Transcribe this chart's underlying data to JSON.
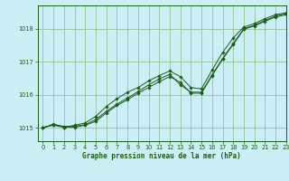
{
  "title": "Graphe pression niveau de la mer (hPa)",
  "bg_color": "#cceef5",
  "grid_color": "#88bb88",
  "line_color": "#1a5c1a",
  "marker_color": "#1a5c1a",
  "xlim": [
    -0.5,
    23
  ],
  "ylim": [
    1014.6,
    1018.7
  ],
  "yticks": [
    1015,
    1016,
    1017,
    1018
  ],
  "xticks": [
    0,
    1,
    2,
    3,
    4,
    5,
    6,
    7,
    8,
    9,
    10,
    11,
    12,
    13,
    14,
    15,
    16,
    17,
    18,
    19,
    20,
    21,
    22,
    23
  ],
  "series1_x": [
    0,
    1,
    2,
    3,
    4,
    5,
    6,
    7,
    8,
    9,
    10,
    11,
    12,
    13,
    14,
    15,
    16,
    17,
    18,
    19,
    20,
    21,
    22,
    23
  ],
  "series1_y": [
    1015.0,
    1015.1,
    1015.05,
    1015.05,
    1015.1,
    1015.25,
    1015.5,
    1015.72,
    1015.9,
    1016.1,
    1016.3,
    1016.48,
    1016.62,
    1016.3,
    1016.08,
    1016.08,
    1016.6,
    1017.1,
    1017.55,
    1018.0,
    1018.1,
    1018.25,
    1018.38,
    1018.45
  ],
  "series2_x": [
    0,
    1,
    2,
    3,
    4,
    5,
    6,
    7,
    8,
    9,
    10,
    11,
    12,
    13,
    14,
    15,
    16,
    17,
    18,
    19,
    20,
    21,
    22,
    23
  ],
  "series2_y": [
    1015.0,
    1015.12,
    1015.02,
    1015.08,
    1015.15,
    1015.35,
    1015.65,
    1015.88,
    1016.08,
    1016.22,
    1016.42,
    1016.58,
    1016.72,
    1016.55,
    1016.22,
    1016.18,
    1016.75,
    1017.28,
    1017.72,
    1018.05,
    1018.15,
    1018.3,
    1018.42,
    1018.48
  ],
  "series3_x": [
    0,
    1,
    2,
    3,
    4,
    5,
    6,
    7,
    8,
    9,
    10,
    11,
    12,
    13,
    14,
    15,
    16,
    17,
    18,
    19,
    20,
    21,
    22,
    23
  ],
  "series3_y": [
    1015.02,
    1015.08,
    1015.02,
    1015.02,
    1015.08,
    1015.2,
    1015.45,
    1015.68,
    1015.85,
    1016.05,
    1016.22,
    1016.4,
    1016.55,
    1016.38,
    1016.05,
    1016.05,
    1016.58,
    1017.08,
    1017.52,
    1017.98,
    1018.08,
    1018.22,
    1018.35,
    1018.42
  ]
}
